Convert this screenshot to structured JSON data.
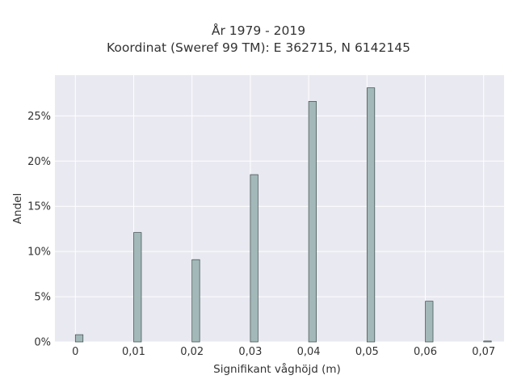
{
  "chart_data": {
    "type": "bar",
    "title": "År 1979 - 2019",
    "subtitle": "Koordinat (Sweref 99 TM): E 362715, N 6142145",
    "xlabel": "Signifikant våghöjd (m)",
    "ylabel": "Andel",
    "x": [
      0,
      0.01,
      0.02,
      0.03,
      0.04,
      0.05,
      0.06,
      0.07
    ],
    "x_tick_labels": [
      "0",
      "0,01",
      "0,02",
      "0,03",
      "0,04",
      "0,05",
      "0,06",
      "0,07"
    ],
    "values": [
      0.8,
      12.1,
      9.1,
      18.5,
      26.6,
      28.1,
      4.5,
      0.1
    ],
    "y_ticks": [
      0,
      5,
      10,
      15,
      20,
      25
    ],
    "y_tick_labels": [
      "0%",
      "5%",
      "10%",
      "15%",
      "20%",
      "25%"
    ],
    "xlim": [
      -0.0035,
      0.0735
    ],
    "ylim": [
      0,
      29.5
    ],
    "grid": true,
    "legend": "none",
    "colors": {
      "bar_fill": "#a2b8b9",
      "bar_stroke": "#3a4a4a",
      "plot_background": "#e9e9f1",
      "grid": "#ffffff"
    }
  }
}
